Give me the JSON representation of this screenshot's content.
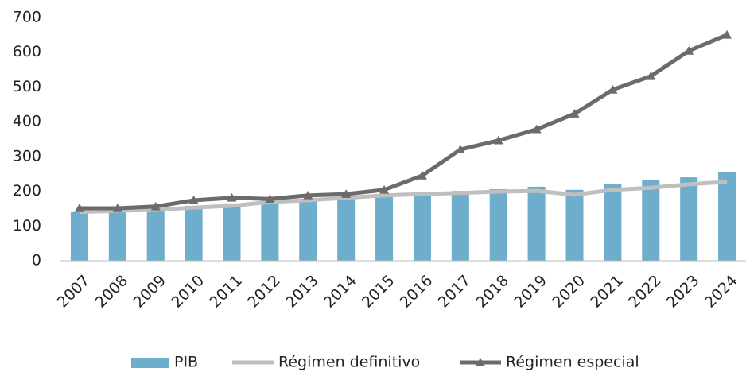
{
  "chart_data": {
    "type": "bar_line",
    "categories": [
      "2007",
      "2008",
      "2009",
      "2010",
      "2011",
      "2012",
      "2013",
      "2014",
      "2015",
      "2016",
      "2017",
      "2018",
      "2019",
      "2020",
      "2021",
      "2022",
      "2023",
      "2024"
    ],
    "series": [
      {
        "name": "PIB",
        "type": "bar",
        "color": "#6fadcc",
        "values": [
          140,
          142,
          146,
          158,
          165,
          176,
          178,
          183,
          190,
          194,
          201,
          206,
          213,
          204,
          220,
          231,
          240,
          254
        ]
      },
      {
        "name": "Régimen definitivo",
        "type": "line",
        "color": "#bfbfbf",
        "values": [
          140,
          144,
          146,
          153,
          158,
          169,
          174,
          181,
          188,
          192,
          195,
          199,
          201,
          190,
          204,
          210,
          220,
          227
        ]
      },
      {
        "name": "Régimen especial",
        "type": "line",
        "marker": "triangle",
        "color": "#6b6b6b",
        "values": [
          151,
          151,
          156,
          174,
          181,
          178,
          188,
          192,
          204,
          245,
          320,
          346,
          378,
          423,
          492,
          531,
          604,
          650
        ]
      }
    ],
    "ylim": [
      0,
      700
    ],
    "yticks": [
      0,
      100,
      200,
      300,
      400,
      500,
      600,
      700
    ],
    "grid": false,
    "legend": "bottom"
  }
}
